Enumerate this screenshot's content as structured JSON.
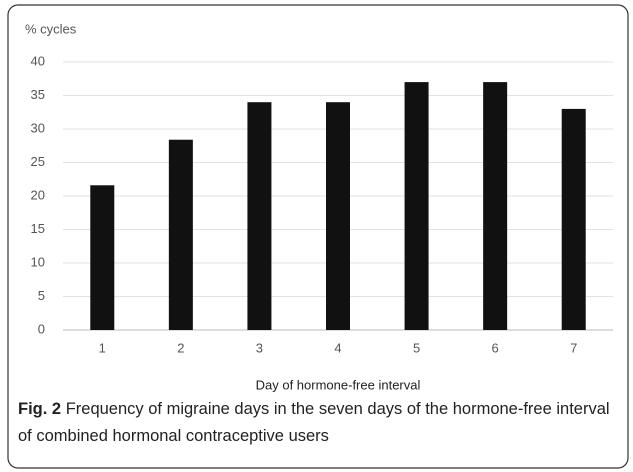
{
  "chart_data": {
    "type": "bar",
    "y_axis_label": "% cycles",
    "x_axis_label": "Day of hormone-free interval",
    "categories": [
      "1",
      "2",
      "3",
      "4",
      "5",
      "6",
      "7"
    ],
    "values": [
      21.6,
      28.4,
      34,
      34,
      37,
      37,
      33
    ],
    "color": "#111111",
    "ylim": [
      0,
      40
    ],
    "yticks": [
      0,
      5,
      10,
      15,
      20,
      25,
      30,
      35,
      40
    ],
    "grid": true
  },
  "caption": {
    "label": "Fig. 2",
    "text": "Frequency of migraine days in the seven days of the hormone-free interval of combined hormonal contraceptive users"
  }
}
